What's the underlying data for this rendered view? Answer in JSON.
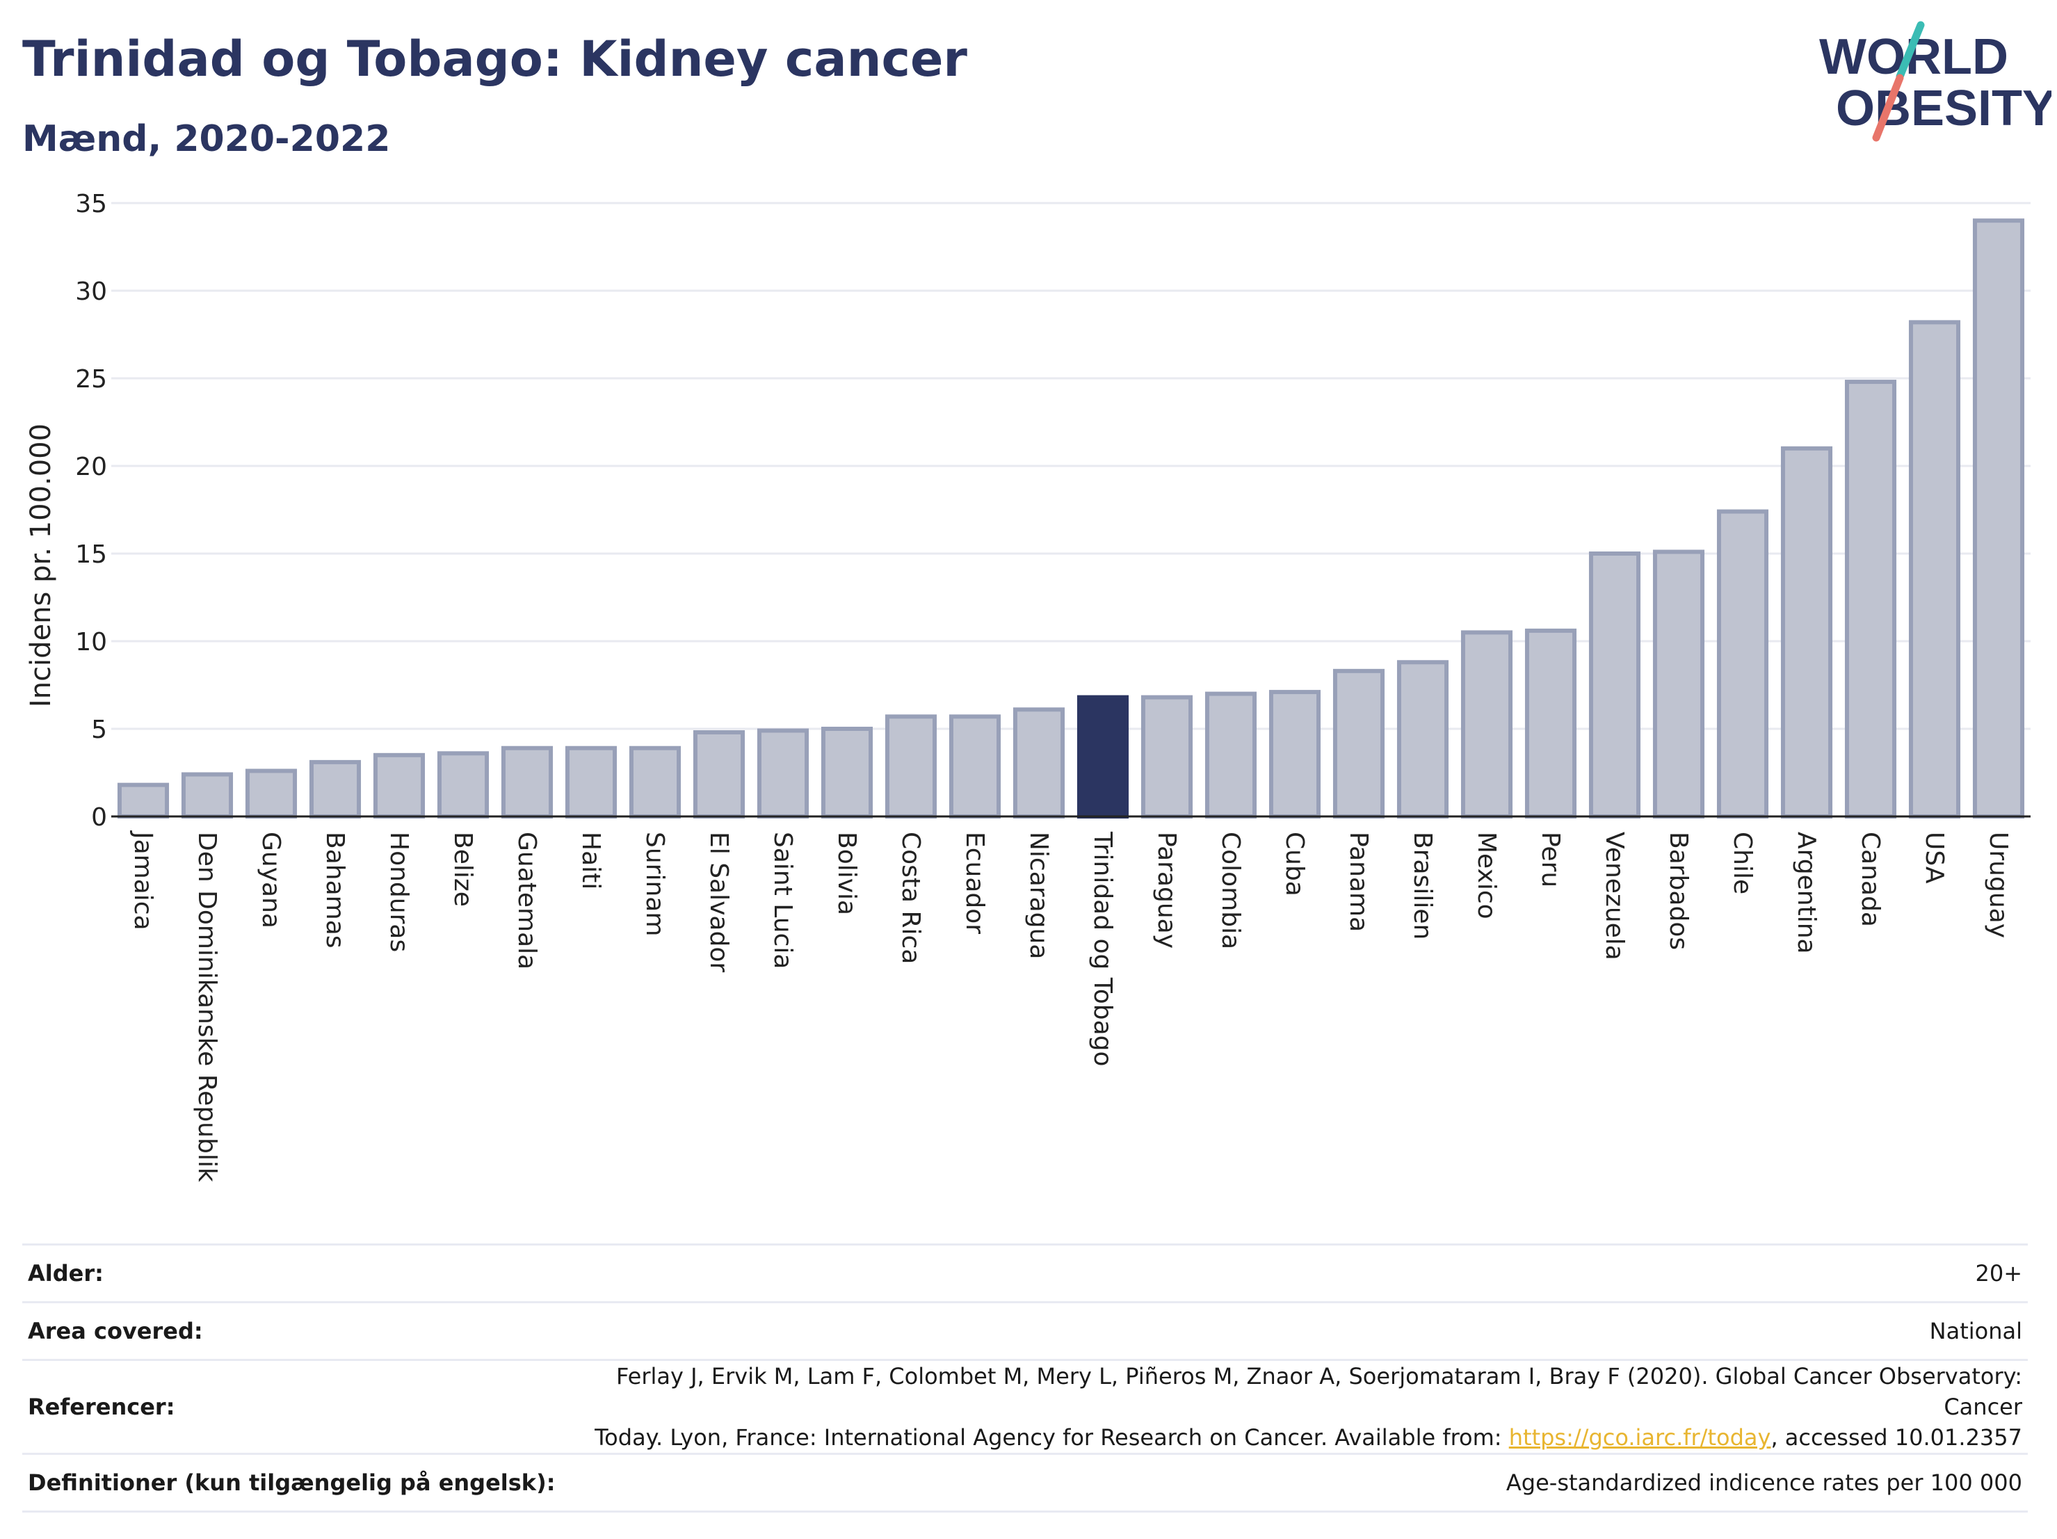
{
  "header": {
    "title": "Trinidad og Tobago: Kidney cancer",
    "subtitle": "Mænd, 2020-2022"
  },
  "logo": {
    "line1": "WORLD",
    "line2": "OBESITY"
  },
  "colors": {
    "title": "#2b3561",
    "bar": "#bfc3d0",
    "bar_border": "#98a0b8",
    "highlight": "#2b3561",
    "grid": "#e8eaf0",
    "link": "#e8b530",
    "logo_teal": "#3bbcb4",
    "logo_coral": "#e8756a"
  },
  "chart_data": {
    "type": "bar",
    "ylabel": "Incidens pr. 100.000",
    "ylim": [
      0,
      35
    ],
    "yticks": [
      0,
      5,
      10,
      15,
      20,
      25,
      30,
      35
    ],
    "grid": true,
    "highlight": "Trinidad og Tobago",
    "categories": [
      "Jamaica",
      "Den Dominikanske Republik",
      "Guyana",
      "Bahamas",
      "Honduras",
      "Belize",
      "Guatemala",
      "Haiti",
      "Surinam",
      "El Salvador",
      "Saint Lucia",
      "Bolivia",
      "Costa Rica",
      "Ecuador",
      "Nicaragua",
      "Trinidad og Tobago",
      "Paraguay",
      "Colombia",
      "Cuba",
      "Panama",
      "Brasilien",
      "Mexico",
      "Peru",
      "Venezuela",
      "Barbados",
      "Chile",
      "Argentina",
      "Canada",
      "USA",
      "Uruguay"
    ],
    "values": [
      1.8,
      2.4,
      2.6,
      3.1,
      3.5,
      3.6,
      3.9,
      3.9,
      3.9,
      4.8,
      4.9,
      5.0,
      5.7,
      5.7,
      6.1,
      6.8,
      6.8,
      7.0,
      7.1,
      8.3,
      8.8,
      10.5,
      10.6,
      15.0,
      15.1,
      17.4,
      21.0,
      24.8,
      28.2,
      34.0
    ]
  },
  "info": {
    "rows": [
      {
        "key": "Alder:",
        "value": "20+"
      },
      {
        "key": "Area covered:",
        "value": "National"
      },
      {
        "key": "Referencer:",
        "value_line1": "Ferlay J, Ervik M, Lam F, Colombet M, Mery L, Piñeros M, Znaor A, Soerjomataram I, Bray F (2020). Global Cancer Observatory: Cancer",
        "value_line2_pre": "Today. Lyon, France: International Agency for Research on Cancer. Available from: ",
        "link": "https://gco.iarc.fr/today",
        "value_line2_post": ", accessed 10.01.2357"
      },
      {
        "key": "Definitioner (kun tilgængelig på engelsk):",
        "value": "Age-standardized indicence rates per 100 000"
      }
    ]
  }
}
